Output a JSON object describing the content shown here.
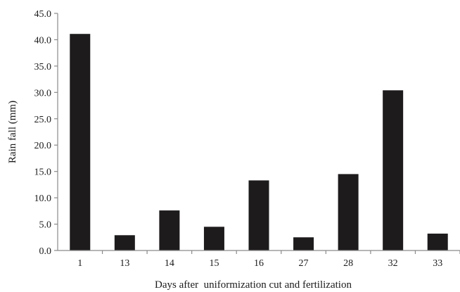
{
  "chart_data": {
    "type": "bar",
    "categories": [
      "1",
      "13",
      "14",
      "15",
      "16",
      "27",
      "28",
      "32",
      "33"
    ],
    "values": [
      41.1,
      2.9,
      7.6,
      4.5,
      13.3,
      2.5,
      14.5,
      30.4,
      3.2
    ],
    "title": "",
    "xlabel": "Days after  uniformization cut and fertilization",
    "ylabel": "Rain fall (mm)",
    "ylim": [
      0,
      45
    ],
    "yticks": [
      "0.0",
      "5.0",
      "10.0",
      "15.0",
      "20.0",
      "25.0",
      "30.0",
      "35.0",
      "40.0",
      "45.0"
    ],
    "grid": false,
    "bar_color": "#1e1b1c",
    "axis_color": "#8a8a8a"
  }
}
